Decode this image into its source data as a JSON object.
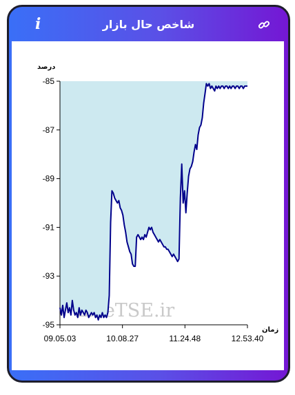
{
  "header": {
    "title": "شاخص حال بازار",
    "info_icon": "info-icon",
    "link_icon": "link-icon"
  },
  "watermark": "LiveTSE.ir",
  "colors": {
    "gradient_start": "#3a6ff7",
    "gradient_end": "#7417d4",
    "line": "#00008b",
    "fill": "#cde9f0"
  },
  "chart_data": {
    "type": "area",
    "ylabel": "درصد",
    "xlabel": "زمان",
    "ylim": [
      -95,
      -85
    ],
    "yticks": [
      -85,
      -87,
      -89,
      -91,
      -93,
      -95
    ],
    "ytick_labels": [
      "-85",
      "-87",
      "-89",
      "-91",
      "-93",
      "-95"
    ],
    "xtick_labels": [
      "09.05.03",
      "10.08.27",
      "11.24.48",
      "12.53.40"
    ],
    "x": [
      0,
      2,
      4,
      6,
      8,
      10,
      12,
      14,
      16,
      18,
      20,
      22,
      24,
      26,
      28,
      30,
      32,
      34,
      36,
      38,
      40,
      42,
      44,
      46,
      48,
      50,
      52,
      54,
      56,
      58,
      60,
      62,
      64,
      66,
      68,
      70,
      72,
      74,
      76,
      78,
      80,
      82,
      84,
      86,
      88,
      90,
      92,
      94,
      96,
      98,
      100,
      102,
      104,
      106,
      108,
      110,
      112,
      114,
      116,
      118,
      120,
      122,
      124,
      126,
      128,
      130,
      132,
      134,
      136,
      138,
      140,
      142,
      144,
      146,
      148,
      150,
      152,
      154,
      156,
      158,
      160,
      162,
      164,
      166,
      168,
      170,
      172,
      174,
      176,
      178,
      180,
      182,
      184,
      186,
      188,
      190,
      192,
      194,
      196,
      198,
      200,
      202,
      204,
      206,
      208,
      210,
      212,
      214,
      216,
      218,
      220,
      222,
      224,
      226,
      228,
      230,
      232,
      234,
      236,
      238,
      240,
      242,
      244,
      246,
      248,
      250,
      252,
      254,
      256,
      258,
      260,
      262,
      264,
      266,
      268,
      270,
      272,
      274
    ],
    "values": [
      -94.3,
      -94.6,
      -94.2,
      -94.7,
      -94.4,
      -94.1,
      -94.5,
      -94.3,
      -94.6,
      -94.0,
      -94.4,
      -94.6,
      -94.5,
      -94.7,
      -94.3,
      -94.6,
      -94.4,
      -94.5,
      -94.6,
      -94.4,
      -94.5,
      -94.7,
      -94.6,
      -94.5,
      -94.6,
      -94.5,
      -94.7,
      -94.6,
      -94.8,
      -94.6,
      -94.7,
      -94.5,
      -94.7,
      -94.6,
      -94.7,
      -94.5,
      -93.8,
      -90.8,
      -89.5,
      -89.6,
      -89.8,
      -89.9,
      -90.0,
      -89.9,
      -90.2,
      -90.3,
      -90.5,
      -90.9,
      -91.2,
      -91.6,
      -91.8,
      -92.0,
      -92.1,
      -92.5,
      -92.6,
      -92.6,
      -91.4,
      -91.3,
      -91.4,
      -91.5,
      -91.4,
      -91.5,
      -91.3,
      -91.4,
      -91.2,
      -91.0,
      -91.1,
      -91.0,
      -91.2,
      -91.3,
      -91.4,
      -91.5,
      -91.6,
      -91.5,
      -91.6,
      -91.7,
      -91.8,
      -91.8,
      -91.9,
      -91.9,
      -92.0,
      -92.1,
      -92.2,
      -92.1,
      -92.2,
      -92.3,
      -92.4,
      -92.3,
      -89.8,
      -88.4,
      -90.0,
      -89.5,
      -90.4,
      -89.6,
      -88.9,
      -88.6,
      -88.5,
      -88.3,
      -87.9,
      -87.6,
      -87.8,
      -87.2,
      -86.9,
      -86.8,
      -86.5,
      -85.9,
      -85.5,
      -85.1,
      -85.2,
      -85.1,
      -85.3,
      -85.2,
      -85.3,
      -85.4,
      -85.2,
      -85.3,
      -85.2,
      -85.3,
      -85.2,
      -85.2,
      -85.3,
      -85.2,
      -85.2,
      -85.3,
      -85.2,
      -85.3,
      -85.2,
      -85.2,
      -85.3,
      -85.2,
      -85.2,
      -85.3,
      -85.2,
      -85.2,
      -85.3,
      -85.2,
      -85.2,
      -85.2
    ]
  }
}
